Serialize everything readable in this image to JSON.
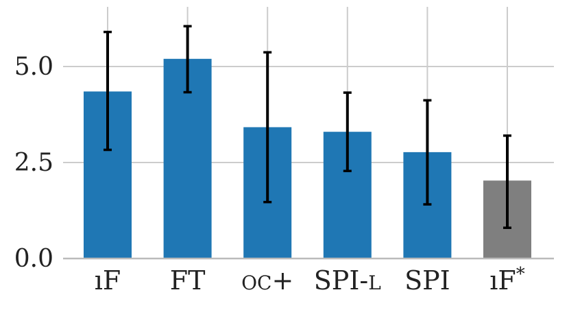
{
  "chart_data": {
    "type": "bar",
    "categories": [
      "IF",
      "FT",
      "OC+",
      "SPI-L",
      "SPI",
      "IF*"
    ],
    "category_labels": [
      {
        "text": "ıF",
        "style": "normal"
      },
      {
        "text": "FT",
        "style": "normal"
      },
      {
        "text": "oc+",
        "style": "smallcaps"
      },
      {
        "text": "SPI-l",
        "style": "smallcaps"
      },
      {
        "text": "SPI",
        "style": "normal"
      },
      {
        "text": "ıF*",
        "style": "normal"
      }
    ],
    "values": [
      4.35,
      5.2,
      3.42,
      3.3,
      2.77,
      2.03
    ],
    "error_low": [
      2.83,
      4.33,
      1.47,
      2.28,
      1.41,
      0.8
    ],
    "error_high": [
      5.9,
      6.05,
      5.37,
      4.32,
      4.12,
      3.2
    ],
    "bar_colors": [
      "#1f77b4",
      "#1f77b4",
      "#1f77b4",
      "#1f77b4",
      "#1f77b4",
      "#7f7f7f"
    ],
    "error_color": "#000000",
    "yticks": [
      0.0,
      2.5,
      5.0
    ],
    "ytick_labels": [
      "0.0",
      "2.5",
      "5.0"
    ],
    "ylim": [
      0,
      6.3
    ],
    "grid": true,
    "grid_color": "#cccccc",
    "title": "",
    "xlabel": "",
    "ylabel": ""
  }
}
